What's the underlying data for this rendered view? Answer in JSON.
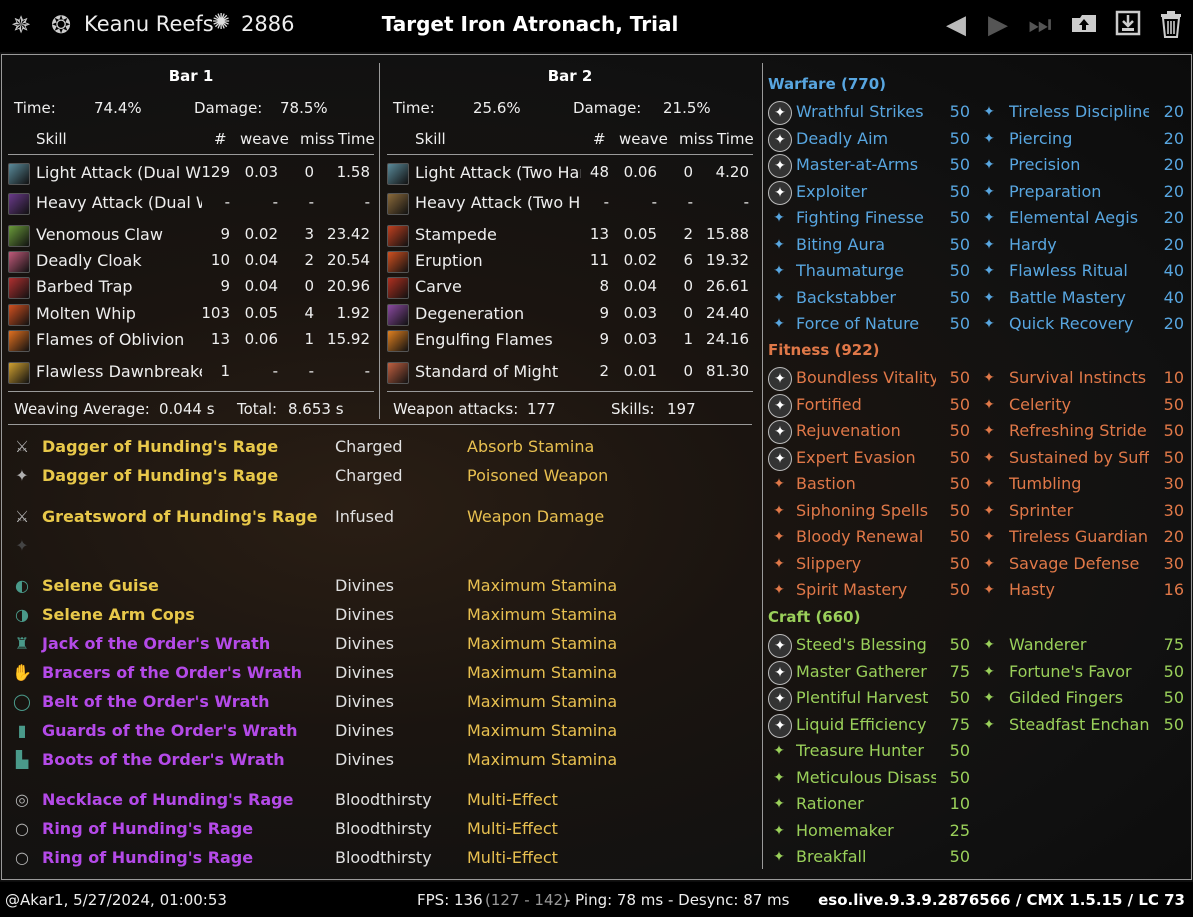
{
  "header": {
    "player_name": "Keanu Reefs",
    "cp_points": "2886",
    "fight_title": "Target Iron Atronach, Trial",
    "icons": [
      "menu-emblem-icon",
      "dragon-crest-icon",
      "champion-points-icon",
      "prev-fight-icon",
      "next-fight-icon",
      "last-fight-icon",
      "upload-icon",
      "save-icon",
      "delete-icon"
    ]
  },
  "bars": [
    {
      "title": "Bar 1",
      "time_label": "Time:",
      "time_value": "74.4%",
      "damage_label": "Damage:",
      "damage_value": "78.5%",
      "col_skill": "Skill",
      "col_count": "#",
      "col_weave": "weave",
      "col_miss": "miss",
      "col_time": "Time",
      "skills": [
        {
          "name": "Light Attack (Dual Wi",
          "count": "129",
          "weave": "0.03",
          "miss": "0",
          "time": "1.58",
          "color": "#5a8a9a"
        },
        {
          "name": "Heavy Attack (Dual W",
          "count": "-",
          "weave": "-",
          "miss": "-",
          "time": "-",
          "color": "#6a3a8a"
        },
        {
          "name": "Venomous Claw",
          "count": "9",
          "weave": "0.02",
          "miss": "3",
          "time": "23.42",
          "color": "#6a9a3a"
        },
        {
          "name": "Deadly Cloak",
          "count": "10",
          "weave": "0.04",
          "miss": "2",
          "time": "20.54",
          "color": "#c05a7a"
        },
        {
          "name": "Barbed Trap",
          "count": "9",
          "weave": "0.04",
          "miss": "0",
          "time": "20.96",
          "color": "#b03030"
        },
        {
          "name": "Molten Whip",
          "count": "103",
          "weave": "0.05",
          "miss": "4",
          "time": "1.92",
          "color": "#d05020"
        },
        {
          "name": "Flames of Oblivion",
          "count": "13",
          "weave": "0.06",
          "miss": "1",
          "time": "15.92",
          "color": "#e07020"
        },
        {
          "name": "Flawless Dawnbreake",
          "count": "1",
          "weave": "-",
          "miss": "-",
          "time": "-",
          "color": "#d0a030"
        }
      ],
      "footer_left_label": "Weaving Average:",
      "footer_left_value": "0.044 s",
      "footer_right_label": "Total:",
      "footer_right_value": "8.653 s"
    },
    {
      "title": "Bar 2",
      "time_label": "Time:",
      "time_value": "25.6%",
      "damage_label": "Damage:",
      "damage_value": "21.5%",
      "col_skill": "Skill",
      "col_count": "#",
      "col_weave": "weave",
      "col_miss": "miss",
      "col_time": "Time",
      "skills": [
        {
          "name": "Light Attack (Two Han",
          "count": "48",
          "weave": "0.06",
          "miss": "0",
          "time": "4.20",
          "color": "#5a8a9a"
        },
        {
          "name": "Heavy Attack (Two Ha",
          "count": "-",
          "weave": "-",
          "miss": "-",
          "time": "-",
          "color": "#8a6a3a"
        },
        {
          "name": "Stampede",
          "count": "13",
          "weave": "0.05",
          "miss": "2",
          "time": "15.88",
          "color": "#c04020"
        },
        {
          "name": "Eruption",
          "count": "11",
          "weave": "0.02",
          "miss": "6",
          "time": "19.32",
          "color": "#d05020"
        },
        {
          "name": "Carve",
          "count": "8",
          "weave": "0.04",
          "miss": "0",
          "time": "26.61",
          "color": "#b03020"
        },
        {
          "name": "Degeneration",
          "count": "9",
          "weave": "0.03",
          "miss": "0",
          "time": "24.40",
          "color": "#8a4aa0"
        },
        {
          "name": "Engulfing Flames",
          "count": "9",
          "weave": "0.03",
          "miss": "1",
          "time": "24.16",
          "color": "#e08020"
        },
        {
          "name": "Standard of Might",
          "count": "2",
          "weave": "0.01",
          "miss": "0",
          "time": "81.30",
          "color": "#c06040"
        }
      ],
      "footer_left_label": "Weapon attacks:",
      "footer_left_value": "177",
      "footer_right_label": "Skills:",
      "footer_right_value": "197"
    }
  ],
  "gear": [
    {
      "name": "Dagger of Hunding's Rage",
      "trait": "Charged",
      "enchant": "Absorb Stamina",
      "color": "#e8c84a",
      "icon": "⚔",
      "icon_name": "dagger-icon"
    },
    {
      "name": "Dagger of Hunding's Rage",
      "trait": "Charged",
      "enchant": "Poisoned Weapon",
      "color": "#e8c84a",
      "icon": "✦",
      "icon_name": "dagger-icon"
    },
    {
      "name": "Greatsword of Hunding's Rage",
      "trait": "Infused",
      "enchant": "Weapon Damage",
      "color": "#e8c84a",
      "icon": "⚔",
      "icon_name": "greatsword-icon"
    },
    {
      "name": "",
      "trait": "",
      "enchant": "",
      "color": "#e8c84a",
      "icon": "✦",
      "icon_name": "empty-slot-icon"
    },
    {
      "name": "Selene Guise",
      "trait": "Divines",
      "enchant": "Maximum Stamina",
      "color": "#e8c84a",
      "icon": "◐",
      "icon_name": "helmet-icon"
    },
    {
      "name": "Selene Arm Cops",
      "trait": "Divines",
      "enchant": "Maximum Stamina",
      "color": "#e8c84a",
      "icon": "◑",
      "icon_name": "shoulders-icon"
    },
    {
      "name": "Jack of the Order's Wrath",
      "trait": "Divines",
      "enchant": "Maximum Stamina",
      "color": "#b44ae8",
      "icon": "♜",
      "icon_name": "chest-icon"
    },
    {
      "name": "Bracers of the Order's Wrath",
      "trait": "Divines",
      "enchant": "Maximum Stamina",
      "color": "#b44ae8",
      "icon": "✋",
      "icon_name": "gloves-icon"
    },
    {
      "name": "Belt of the Order's Wrath",
      "trait": "Divines",
      "enchant": "Maximum Stamina",
      "color": "#b44ae8",
      "icon": "◯",
      "icon_name": "belt-icon"
    },
    {
      "name": "Guards of the Order's Wrath",
      "trait": "Divines",
      "enchant": "Maximum Stamina",
      "color": "#b44ae8",
      "icon": "▮",
      "icon_name": "legs-icon"
    },
    {
      "name": "Boots of the Order's Wrath",
      "trait": "Divines",
      "enchant": "Maximum Stamina",
      "color": "#b44ae8",
      "icon": "▙",
      "icon_name": "boots-icon"
    },
    {
      "name": "Necklace of Hunding's Rage",
      "trait": "Bloodthirsty",
      "enchant": "Multi-Effect",
      "color": "#b44ae8",
      "icon": "◎",
      "icon_name": "necklace-icon"
    },
    {
      "name": "Ring of Hunding's Rage",
      "trait": "Bloodthirsty",
      "enchant": "Multi-Effect",
      "color": "#b44ae8",
      "icon": "○",
      "icon_name": "ring-icon"
    },
    {
      "name": "Ring of Hunding's Rage",
      "trait": "Bloodthirsty",
      "enchant": "Multi-Effect",
      "color": "#b44ae8",
      "icon": "○",
      "icon_name": "ring-icon"
    }
  ],
  "cp": [
    {
      "title": "Warfare (770)",
      "color": "#58a6e0",
      "left": [
        {
          "name": "Wrathful Strikes",
          "pts": "50",
          "slotted": true
        },
        {
          "name": "Deadly Aim",
          "pts": "50",
          "slotted": true
        },
        {
          "name": "Master-at-Arms",
          "pts": "50",
          "slotted": true
        },
        {
          "name": "Exploiter",
          "pts": "50",
          "slotted": true
        },
        {
          "name": "Fighting Finesse",
          "pts": "50",
          "slotted": false
        },
        {
          "name": "Biting Aura",
          "pts": "50",
          "slotted": false
        },
        {
          "name": "Thaumaturge",
          "pts": "50",
          "slotted": false
        },
        {
          "name": "Backstabber",
          "pts": "50",
          "slotted": false
        },
        {
          "name": "Force of Nature",
          "pts": "50",
          "slotted": false
        }
      ],
      "right": [
        {
          "name": "Tireless Discipline",
          "pts": "20"
        },
        {
          "name": "Piercing",
          "pts": "20"
        },
        {
          "name": "Precision",
          "pts": "20"
        },
        {
          "name": "Preparation",
          "pts": "20"
        },
        {
          "name": "Elemental Aegis",
          "pts": "20"
        },
        {
          "name": "Hardy",
          "pts": "20"
        },
        {
          "name": "Flawless Ritual",
          "pts": "40"
        },
        {
          "name": "Battle Mastery",
          "pts": "40"
        },
        {
          "name": "Quick Recovery",
          "pts": "20"
        }
      ]
    },
    {
      "title": "Fitness (922)",
      "color": "#e07848",
      "left": [
        {
          "name": "Boundless Vitality",
          "pts": "50",
          "slotted": true
        },
        {
          "name": "Fortified",
          "pts": "50",
          "slotted": true
        },
        {
          "name": "Rejuvenation",
          "pts": "50",
          "slotted": true
        },
        {
          "name": "Expert Evasion",
          "pts": "50",
          "slotted": true
        },
        {
          "name": "Bastion",
          "pts": "50",
          "slotted": false
        },
        {
          "name": "Siphoning Spells",
          "pts": "50",
          "slotted": false
        },
        {
          "name": "Bloody Renewal",
          "pts": "50",
          "slotted": false
        },
        {
          "name": "Slippery",
          "pts": "50",
          "slotted": false
        },
        {
          "name": "Spirit Mastery",
          "pts": "50",
          "slotted": false
        }
      ],
      "right": [
        {
          "name": "Survival Instincts",
          "pts": "10"
        },
        {
          "name": "Celerity",
          "pts": "50"
        },
        {
          "name": "Refreshing Stride",
          "pts": "50"
        },
        {
          "name": "Sustained by Suffe",
          "pts": "50"
        },
        {
          "name": "Tumbling",
          "pts": "30"
        },
        {
          "name": "Sprinter",
          "pts": "30"
        },
        {
          "name": "Tireless Guardian",
          "pts": "20"
        },
        {
          "name": "Savage Defense",
          "pts": "30"
        },
        {
          "name": "Hasty",
          "pts": "16"
        }
      ]
    },
    {
      "title": "Craft (660)",
      "color": "#9ad05a",
      "left": [
        {
          "name": "Steed's Blessing",
          "pts": "50",
          "slotted": true
        },
        {
          "name": "Master Gatherer",
          "pts": "75",
          "slotted": true
        },
        {
          "name": "Plentiful Harvest",
          "pts": "50",
          "slotted": true
        },
        {
          "name": "Liquid Efficiency",
          "pts": "75",
          "slotted": true
        },
        {
          "name": "Treasure Hunter",
          "pts": "50",
          "slotted": false
        },
        {
          "name": "Meticulous Disass",
          "pts": "50",
          "slotted": false
        },
        {
          "name": "Rationer",
          "pts": "10",
          "slotted": false
        },
        {
          "name": "Homemaker",
          "pts": "25",
          "slotted": false
        },
        {
          "name": "Breakfall",
          "pts": "50",
          "slotted": false
        }
      ],
      "right": [
        {
          "name": "Wanderer",
          "pts": "75"
        },
        {
          "name": "Fortune's Favor",
          "pts": "50"
        },
        {
          "name": "Gilded Fingers",
          "pts": "50"
        },
        {
          "name": "Steadfast Enchant",
          "pts": "50"
        }
      ]
    }
  ],
  "footer": {
    "account_time": "@Akar1, 5/27/2024, 01:00:53",
    "fps_label": "FPS: 136",
    "fps_range": "(127 - 142)",
    "ping": "- Ping: 78 ms - Desync: 87 ms",
    "version": "eso.live.9.3.9.2876566 / CMX 1.5.15 / LC 73"
  }
}
